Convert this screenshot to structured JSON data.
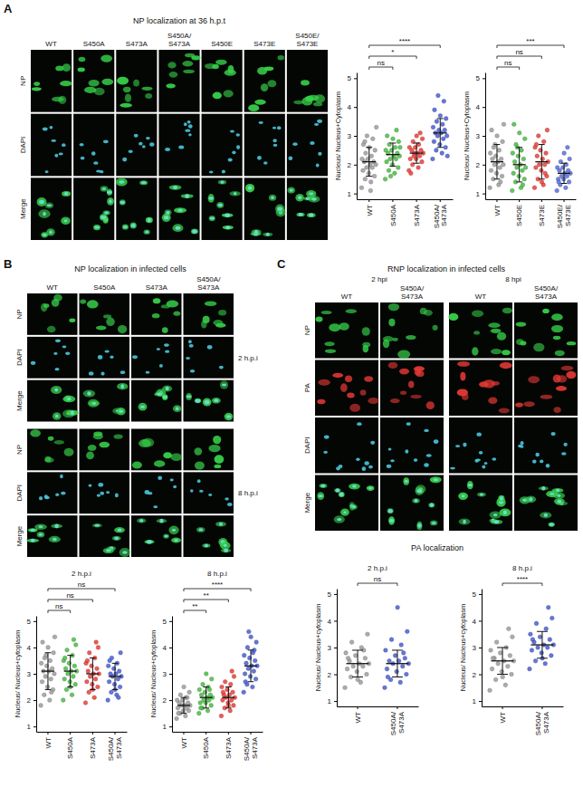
{
  "chart_data": [
    {
      "type": "scatter",
      "y_label": "Nucleus/ Nucleus+Cytoplasm",
      "categories": [
        "WT",
        "S450A",
        "S473A",
        "S450A/ S473A"
      ],
      "colors": [
        "#9e9e9e",
        "#4cbb47",
        "#e8413c",
        "#4a5fd0"
      ],
      "values": [
        [
          1.2,
          1.4,
          1.5,
          1.6,
          1.7,
          1.8,
          1.9,
          1.9,
          2.0,
          2.0,
          2.1,
          2.1,
          2.2,
          2.2,
          2.3,
          2.4,
          2.5,
          2.6,
          2.7,
          2.9,
          3.0,
          3.3,
          1.1,
          2.8
        ],
        [
          1.5,
          1.7,
          1.8,
          1.9,
          2.0,
          2.1,
          2.2,
          2.2,
          2.3,
          2.3,
          2.4,
          2.4,
          2.5,
          2.5,
          2.6,
          2.7,
          2.8,
          2.9,
          3.0,
          3.2,
          1.6,
          2.6
        ],
        [
          1.8,
          1.9,
          2.0,
          2.1,
          2.2,
          2.2,
          2.3,
          2.3,
          2.4,
          2.4,
          2.5,
          2.5,
          2.6,
          2.6,
          2.7,
          2.8,
          2.9,
          3.0,
          1.7,
          3.1,
          2.4
        ],
        [
          2.2,
          2.4,
          2.5,
          2.6,
          2.7,
          2.8,
          2.9,
          3.0,
          3.0,
          3.1,
          3.1,
          3.2,
          3.2,
          3.3,
          3.4,
          3.5,
          3.6,
          3.7,
          3.9,
          4.2,
          4.4,
          2.3
        ]
      ],
      "means": [
        2.1,
        2.35,
        2.4,
        3.1
      ],
      "errors": [
        0.5,
        0.4,
        0.35,
        0.5
      ],
      "ylim": [
        0.8,
        5.2
      ],
      "yticks": [
        1,
        2,
        3,
        4,
        5
      ],
      "annotations": [
        {
          "text": "ns",
          "pair": [
            "WT",
            "S450A"
          ]
        },
        {
          "text": "*",
          "pair": [
            "WT",
            "S473A"
          ]
        },
        {
          "text": "****",
          "pair": [
            "WT",
            "S450A/ S473A"
          ]
        }
      ]
    },
    {
      "type": "scatter",
      "y_label": "Nucleus/ Nucleus+Cytoplasm",
      "categories": [
        "WT",
        "S450E",
        "S473E",
        "S450E/ S473E"
      ],
      "colors": [
        "#9e9e9e",
        "#4cbb47",
        "#e8413c",
        "#5b70d8"
      ],
      "values": [
        [
          1.2,
          1.3,
          1.5,
          1.6,
          1.7,
          1.8,
          1.9,
          2.0,
          2.0,
          2.1,
          2.2,
          2.2,
          2.3,
          2.4,
          2.5,
          2.6,
          2.8,
          3.0,
          3.2,
          1.4,
          2.7,
          3.4
        ],
        [
          1.1,
          1.2,
          1.4,
          1.5,
          1.6,
          1.7,
          1.8,
          1.9,
          1.9,
          2.0,
          2.1,
          2.2,
          2.3,
          2.4,
          2.5,
          2.7,
          2.9,
          3.1,
          3.4,
          1.3,
          2.6
        ],
        [
          1.2,
          1.3,
          1.5,
          1.6,
          1.8,
          1.9,
          2.0,
          2.0,
          2.1,
          2.2,
          2.3,
          2.4,
          2.5,
          2.6,
          2.8,
          3.0,
          3.2,
          1.4,
          2.7,
          1.7
        ],
        [
          1.1,
          1.2,
          1.3,
          1.4,
          1.5,
          1.5,
          1.6,
          1.6,
          1.7,
          1.7,
          1.8,
          1.8,
          1.9,
          1.9,
          2.0,
          2.1,
          2.2,
          2.4,
          1.4,
          2.6
        ]
      ],
      "means": [
        2.1,
        2.0,
        2.1,
        1.7
      ],
      "errors": [
        0.6,
        0.6,
        0.6,
        0.35
      ],
      "ylim": [
        0.8,
        5.2
      ],
      "yticks": [
        1,
        2,
        3,
        4,
        5
      ],
      "annotations": [
        {
          "text": "ns",
          "pair": [
            "WT",
            "S450E"
          ]
        },
        {
          "text": "ns",
          "pair": [
            "WT",
            "S473E"
          ]
        },
        {
          "text": "***",
          "pair": [
            "WT",
            "S450E/ S473E"
          ]
        }
      ]
    },
    {
      "type": "scatter",
      "title": "2 h.p.i",
      "y_label": "Nucleus/ Nucleus+cytoplasm",
      "categories": [
        "WT",
        "S450A",
        "S473A",
        "S450A/ S473A"
      ],
      "colors": [
        "#9e9e9e",
        "#4cbb47",
        "#e8413c",
        "#4a5fd0"
      ],
      "values": [
        [
          1.8,
          2.0,
          2.2,
          2.4,
          2.5,
          2.7,
          2.8,
          2.9,
          3.0,
          3.1,
          3.1,
          3.2,
          3.3,
          3.4,
          3.5,
          3.6,
          3.8,
          4.0,
          4.2,
          2.3,
          3.7,
          4.4
        ],
        [
          2.0,
          2.2,
          2.4,
          2.6,
          2.7,
          2.8,
          2.9,
          3.0,
          3.1,
          3.1,
          3.2,
          3.3,
          3.4,
          3.5,
          3.7,
          3.9,
          4.1,
          2.5,
          3.6,
          4.3
        ],
        [
          1.9,
          2.1,
          2.3,
          2.5,
          2.6,
          2.7,
          2.8,
          2.9,
          3.0,
          3.0,
          3.1,
          3.2,
          3.3,
          3.4,
          3.6,
          3.8,
          4.0,
          2.4,
          3.5,
          4.2
        ],
        [
          2.0,
          2.2,
          2.3,
          2.5,
          2.6,
          2.7,
          2.8,
          2.9,
          2.9,
          3.0,
          3.0,
          3.1,
          3.2,
          3.3,
          3.4,
          3.6,
          3.8,
          2.4,
          3.5,
          2.1
        ]
      ],
      "means": [
        3.1,
        3.1,
        3.0,
        2.9
      ],
      "errors": [
        0.7,
        0.6,
        0.6,
        0.5
      ],
      "ylim": [
        0.8,
        5.2
      ],
      "yticks": [
        1,
        2,
        3,
        4,
        5
      ],
      "annotations": [
        {
          "text": "ns",
          "pair": [
            "WT",
            "S450A"
          ]
        },
        {
          "text": "ns",
          "pair": [
            "WT",
            "S473A"
          ]
        },
        {
          "text": "ns",
          "pair": [
            "WT",
            "S450A/ S473A"
          ]
        }
      ]
    },
    {
      "type": "scatter",
      "title": "8 h.p.i",
      "y_label": "Nucleus/ Nucleus+cytoplasm",
      "categories": [
        "WT",
        "S450A",
        "S473A",
        "S450A/ S473A"
      ],
      "colors": [
        "#9e9e9e",
        "#4cbb47",
        "#e8413c",
        "#4a5fd0"
      ],
      "values": [
        [
          1.3,
          1.4,
          1.5,
          1.6,
          1.6,
          1.7,
          1.7,
          1.8,
          1.8,
          1.8,
          1.9,
          1.9,
          2.0,
          2.0,
          2.1,
          2.2,
          2.3,
          2.5,
          1.5,
          2.1
        ],
        [
          1.5,
          1.6,
          1.7,
          1.8,
          1.9,
          1.9,
          2.0,
          2.0,
          2.1,
          2.1,
          2.2,
          2.2,
          2.3,
          2.4,
          2.5,
          2.6,
          2.8,
          3.0,
          1.7,
          2.4
        ],
        [
          1.4,
          1.6,
          1.7,
          1.8,
          1.9,
          2.0,
          2.0,
          2.1,
          2.1,
          2.2,
          2.2,
          2.3,
          2.4,
          2.5,
          2.6,
          2.7,
          2.9,
          1.8,
          2.3,
          3.1
        ],
        [
          2.3,
          2.5,
          2.6,
          2.8,
          2.9,
          3.0,
          3.1,
          3.2,
          3.3,
          3.3,
          3.4,
          3.5,
          3.6,
          3.7,
          3.8,
          4.0,
          4.2,
          4.4,
          2.7,
          3.9,
          4.6
        ]
      ],
      "means": [
        1.8,
        2.1,
        2.1,
        3.3
      ],
      "errors": [
        0.3,
        0.4,
        0.4,
        0.6
      ],
      "ylim": [
        0.8,
        5.2
      ],
      "yticks": [
        1,
        2,
        3,
        4,
        5
      ],
      "annotations": [
        {
          "text": "**",
          "pair": [
            "WT",
            "S450A"
          ]
        },
        {
          "text": "**",
          "pair": [
            "WT",
            "S473A"
          ]
        },
        {
          "text": "****",
          "pair": [
            "WT",
            "S450A/ S473A"
          ]
        }
      ]
    },
    {
      "type": "scatter",
      "title": "2 h.p.i",
      "y_label": "Nucleus/ Nucleus+cytoplasm",
      "categories": [
        "WT",
        "S450A/ S473A"
      ],
      "colors": [
        "#9e9e9e",
        "#4a5fd0"
      ],
      "values": [
        [
          1.5,
          1.7,
          1.9,
          2.0,
          2.1,
          2.2,
          2.3,
          2.3,
          2.4,
          2.4,
          2.5,
          2.6,
          2.7,
          2.8,
          3.0,
          3.2,
          3.5,
          1.8,
          2.6,
          2.9
        ],
        [
          1.5,
          1.7,
          1.8,
          2.0,
          2.1,
          2.2,
          2.3,
          2.4,
          2.4,
          2.5,
          2.5,
          2.6,
          2.7,
          2.9,
          3.1,
          3.3,
          3.6,
          4.5,
          1.9,
          2.8
        ]
      ],
      "means": [
        2.4,
        2.4
      ],
      "errors": [
        0.5,
        0.5
      ],
      "ylim": [
        0.8,
        5.2
      ],
      "yticks": [
        1,
        2,
        3,
        4,
        5
      ],
      "annotations": [
        {
          "text": "ns",
          "pair": [
            "WT",
            "S450A/ S473A"
          ]
        }
      ]
    },
    {
      "type": "scatter",
      "title": "8 h.p.i",
      "y_label": "Nucleus/ Nucleus+cytoplasm",
      "categories": [
        "WT",
        "S450A/ S473A"
      ],
      "colors": [
        "#9e9e9e",
        "#4a5fd0"
      ],
      "values": [
        [
          1.4,
          1.6,
          1.8,
          2.0,
          2.1,
          2.2,
          2.3,
          2.4,
          2.5,
          2.5,
          2.6,
          2.7,
          2.8,
          2.9,
          3.0,
          3.2,
          3.4,
          1.9,
          2.6,
          3.7
        ],
        [
          2.2,
          2.4,
          2.5,
          2.7,
          2.8,
          2.9,
          3.0,
          3.0,
          3.1,
          3.1,
          3.2,
          3.3,
          3.4,
          3.5,
          3.7,
          3.9,
          4.1,
          2.6,
          3.3,
          4.5
        ]
      ],
      "means": [
        2.5,
        3.1
      ],
      "errors": [
        0.5,
        0.5
      ],
      "ylim": [
        0.8,
        5.2
      ],
      "yticks": [
        1,
        2,
        3,
        4,
        5
      ],
      "annotations": [
        {
          "text": "****",
          "pair": [
            "WT",
            "S450A/ S473A"
          ]
        }
      ]
    }
  ],
  "figure": {
    "panels": [
      {
        "letter": "A",
        "title": "NP localization at 36 h.p.t",
        "columns": [
          "WT",
          "S450A",
          "S473A",
          "S450A/ S473A",
          "S450E",
          "S473E",
          "S450E/ S473E"
        ],
        "rows": [
          "NP",
          "DAPI",
          "Merge"
        ]
      },
      {
        "letter": "B",
        "title": "NP localization in infected cells",
        "columns": [
          "WT",
          "S450A",
          "S473A",
          "S450A/ S473A"
        ],
        "rows": [
          "NP",
          "DAPI",
          "Merge"
        ],
        "groups": [
          "2 h.p.i",
          "8 h.p.i"
        ]
      },
      {
        "letter": "C",
        "title": "RNP localization in infected cells",
        "groups": [
          "2 hpi",
          "8 hpi"
        ],
        "columns": [
          "WT",
          "S450A/ S473A"
        ],
        "rows": [
          "NP",
          "PA",
          "DAPI",
          "Merge"
        ],
        "plot_heading": "PA localization"
      }
    ]
  }
}
